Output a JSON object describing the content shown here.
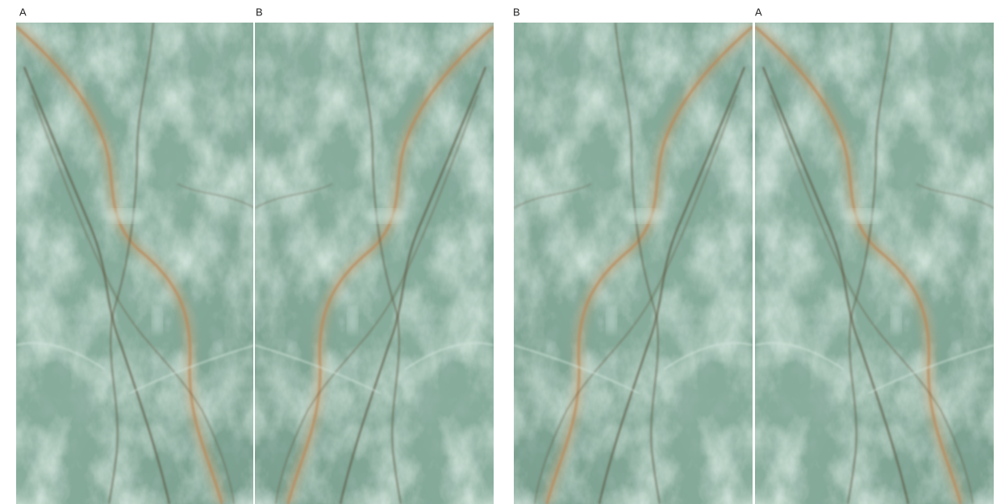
{
  "panels": [
    {
      "label": "A"
    },
    {
      "label": "B"
    },
    {
      "label": "B"
    },
    {
      "label": "A"
    }
  ]
}
